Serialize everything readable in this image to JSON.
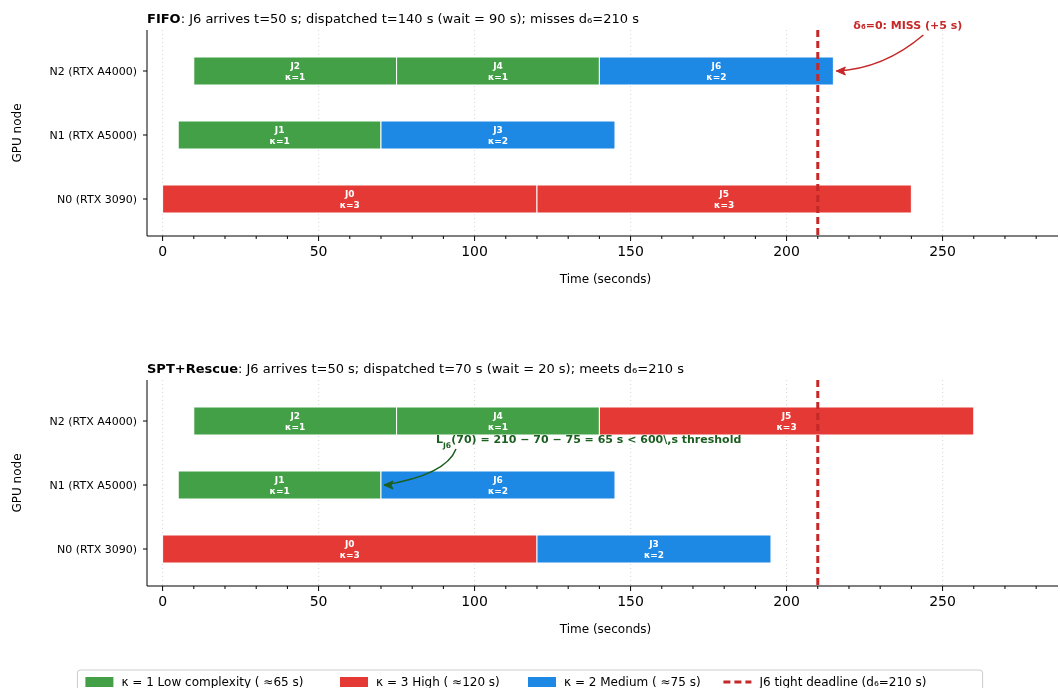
{
  "chart_data": [
    {
      "type": "bar",
      "orientation": "horizontal",
      "title": "FIFO: J6 arrives t=50 s; dispatched t=140 s (wait = 90 s); misses d₆=210 s",
      "xlabel": "Time (seconds)",
      "ylabel": "GPU node",
      "categories": [
        "N2 (RTX A4000)",
        "N1 (RTX A5000)",
        "N0 (RTX 3090)"
      ],
      "xlim": [
        -5,
        287
      ],
      "xticks": [
        0,
        {
          "value": 10,
          "label": null
        },
        {
          "value": 20,
          "label": null
        },
        {
          "value": 30,
          "label": null
        },
        {
          "value": 40,
          "label": null
        },
        50,
        {
          "value": 60,
          "label": null
        },
        {
          "value": 70,
          "label": null
        },
        {
          "value": 80,
          "label": null
        },
        {
          "value": 90,
          "label": null
        },
        100,
        {
          "value": 110,
          "label": null
        },
        {
          "value": 120,
          "label": null
        },
        {
          "value": 130,
          "label": null
        },
        {
          "value": 140,
          "label": null
        },
        150,
        {
          "value": 160,
          "label": null
        },
        {
          "value": 170,
          "label": null
        },
        {
          "value": 180,
          "label": null
        },
        {
          "value": 190,
          "label": null
        },
        200,
        {
          "value": 210,
          "label": null
        },
        {
          "value": 220,
          "label": null
        },
        {
          "value": 230,
          "label": null
        },
        {
          "value": 240,
          "label": null
        },
        250,
        {
          "value": 260,
          "label": null
        },
        {
          "value": 270,
          "label": null
        },
        {
          "value": 280,
          "label": null
        }
      ],
      "grid": "x",
      "series": [
        {
          "color": "#43a047",
          "values": [
            65,
            null,
            null
          ],
          "base": [
            10,
            null,
            null
          ],
          "value_labels": [
            "J2\nκ=1",
            null,
            null
          ]
        },
        {
          "color": "#43a047",
          "values": [
            65,
            null,
            null
          ],
          "base": [
            75,
            null,
            null
          ],
          "value_labels": [
            "J4\nκ=1",
            null,
            null
          ]
        },
        {
          "color": "#1e88e5",
          "values": [
            75,
            null,
            null
          ],
          "base": [
            140,
            null,
            null
          ],
          "value_labels": [
            "J6\nκ=2",
            null,
            null
          ]
        },
        {
          "color": "#43a047",
          "values": [
            null,
            65,
            null
          ],
          "base": [
            null,
            5,
            null
          ],
          "value_labels": [
            null,
            "J1\nκ=1",
            null
          ]
        },
        {
          "color": "#1e88e5",
          "values": [
            null,
            75,
            null
          ],
          "base": [
            null,
            70,
            null
          ],
          "value_labels": [
            null,
            "J3\nκ=2",
            null
          ]
        },
        {
          "color": "#e53935",
          "values": [
            null,
            null,
            120
          ],
          "base": [
            null,
            null,
            0
          ],
          "value_labels": [
            null,
            null,
            "J0\nκ=3"
          ]
        },
        {
          "color": "#e53935",
          "values": [
            null,
            null,
            120
          ],
          "base": [
            null,
            null,
            120
          ],
          "value_labels": [
            null,
            null,
            "J5\nκ=3"
          ]
        }
      ],
      "ref_lines": [
        {
          "axis": "x",
          "value": 210,
          "color": "#c62828",
          "line_style": "dashed"
        }
      ],
      "annotations": [
        {
          "text": "δ₆=0: MISS (+5 s)",
          "x": 215,
          "y": "N2 (RTX A4000)"
        }
      ]
    },
    {
      "type": "bar",
      "orientation": "horizontal",
      "title": "SPT+Rescue: J6 arrives t=50 s; dispatched t=70 s (wait = 20 s); meets d₆=210 s",
      "xlabel": "Time (seconds)",
      "ylabel": "GPU node",
      "categories": [
        "N2 (RTX A4000)",
        "N1 (RTX A5000)",
        "N0 (RTX 3090)"
      ],
      "xlim": [
        -5,
        287
      ],
      "xticks": [
        0,
        {
          "value": 10,
          "label": null
        },
        {
          "value": 20,
          "label": null
        },
        {
          "value": 30,
          "label": null
        },
        {
          "value": 40,
          "label": null
        },
        50,
        {
          "value": 60,
          "label": null
        },
        {
          "value": 70,
          "label": null
        },
        {
          "value": 80,
          "label": null
        },
        {
          "value": 90,
          "label": null
        },
        100,
        {
          "value": 110,
          "label": null
        },
        {
          "value": 120,
          "label": null
        },
        {
          "value": 130,
          "label": null
        },
        {
          "value": 140,
          "label": null
        },
        150,
        {
          "value": 160,
          "label": null
        },
        {
          "value": 170,
          "label": null
        },
        {
          "value": 180,
          "label": null
        },
        {
          "value": 190,
          "label": null
        },
        200,
        {
          "value": 210,
          "label": null
        },
        {
          "value": 220,
          "label": null
        },
        {
          "value": 230,
          "label": null
        },
        {
          "value": 240,
          "label": null
        },
        250,
        {
          "value": 260,
          "label": null
        },
        {
          "value": 270,
          "label": null
        },
        {
          "value": 280,
          "label": null
        }
      ],
      "grid": "x",
      "legend": "bottom",
      "series": [
        {
          "name": "κ = 1 Low complexity ( ≈65 s)",
          "color": "#43a047",
          "values": [
            65,
            null,
            null
          ],
          "base": [
            10,
            null,
            null
          ],
          "value_labels": [
            "J2\nκ=1",
            null,
            null
          ]
        },
        {
          "color": "#43a047",
          "values": [
            65,
            null,
            null
          ],
          "base": [
            75,
            null,
            null
          ],
          "value_labels": [
            "J4\nκ=1",
            null,
            null
          ]
        },
        {
          "name": "κ = 3 High ( ≈120 s)",
          "color": "#e53935",
          "values": [
            120,
            null,
            null
          ],
          "base": [
            140,
            null,
            null
          ],
          "value_labels": [
            "J5\nκ=3",
            null,
            null
          ]
        },
        {
          "color": "#43a047",
          "values": [
            null,
            65,
            null
          ],
          "base": [
            null,
            5,
            null
          ],
          "value_labels": [
            null,
            "J1\nκ=1",
            null
          ]
        },
        {
          "name": "κ = 2 Medium ( ≈75 s)",
          "color": "#1e88e5",
          "values": [
            null,
            75,
            null
          ],
          "base": [
            null,
            70,
            null
          ],
          "value_labels": [
            null,
            "J6\nκ=2",
            null
          ]
        },
        {
          "color": "#e53935",
          "values": [
            null,
            null,
            120
          ],
          "base": [
            null,
            null,
            0
          ],
          "value_labels": [
            null,
            null,
            "J0\nκ=3"
          ]
        },
        {
          "color": "#1e88e5",
          "values": [
            null,
            null,
            75
          ],
          "base": [
            null,
            null,
            120
          ],
          "value_labels": [
            null,
            null,
            "J3\nκ=2"
          ]
        }
      ],
      "ref_lines": [
        {
          "axis": "x",
          "value": 210,
          "color": "#c62828",
          "line_style": "dashed",
          "label": "J6 tight deadline (d₆=210 s)"
        }
      ],
      "annotations": [
        {
          "text": "L$_{J6}$(70) = 210 − 70 − 75 = 65 s < 600\\,s threshold",
          "x": 70,
          "y": "N1 (RTX A5000)"
        }
      ]
    }
  ]
}
